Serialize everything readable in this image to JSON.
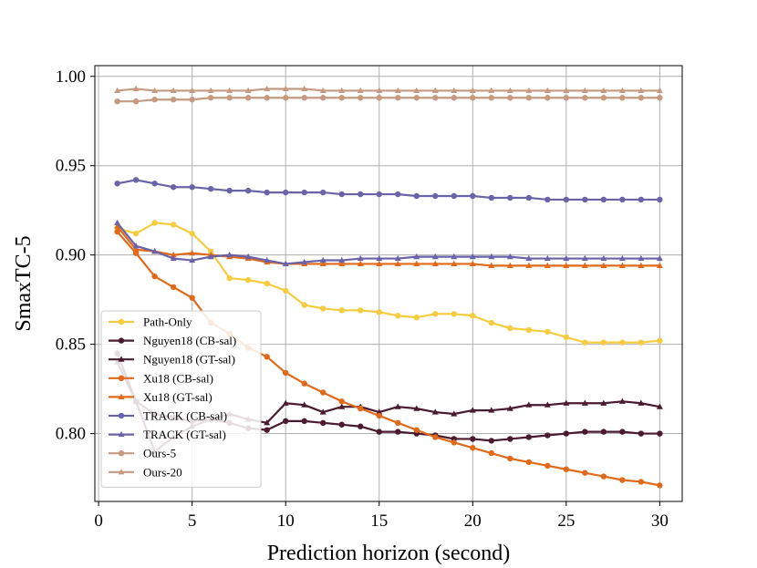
{
  "chart_data": {
    "type": "line",
    "title": "",
    "xlabel": "Prediction horizon (second)",
    "ylabel": "SmaxTC-5",
    "xlim": [
      -0.2,
      31.2
    ],
    "ylim": [
      0.762,
      1.006
    ],
    "xticks": [
      0,
      5,
      10,
      15,
      20,
      25,
      30
    ],
    "yticks": [
      0.8,
      0.85,
      0.9,
      0.95,
      1.0
    ],
    "xtick_labels": [
      "0",
      "5",
      "10",
      "15",
      "20",
      "25",
      "30"
    ],
    "ytick_labels": [
      "0.80",
      "0.85",
      "0.90",
      "0.95",
      "1.00"
    ],
    "grid": true,
    "legend_position": "lower-left",
    "series": [
      {
        "name": "Path-Only",
        "color": "#f5cc40",
        "marker": "circle",
        "x": [
          1,
          2,
          3,
          4,
          5,
          6,
          7,
          8,
          9,
          10,
          11,
          12,
          13,
          14,
          15,
          16,
          17,
          18,
          19,
          20,
          21,
          22,
          23,
          24,
          25,
          26,
          27,
          28,
          29,
          30
        ],
        "values": [
          0.915,
          0.912,
          0.918,
          0.917,
          0.912,
          0.902,
          0.887,
          0.886,
          0.884,
          0.88,
          0.872,
          0.87,
          0.869,
          0.869,
          0.868,
          0.866,
          0.865,
          0.867,
          0.867,
          0.866,
          0.862,
          0.859,
          0.858,
          0.857,
          0.854,
          0.851,
          0.851,
          0.851,
          0.851,
          0.852
        ]
      },
      {
        "name": "Nguyen18 (CB-sal)",
        "color": "#4a1a2e",
        "marker": "circle",
        "x": [
          1,
          2,
          3,
          4,
          5,
          6,
          7,
          8,
          9,
          10,
          11,
          12,
          13,
          14,
          15,
          16,
          17,
          18,
          19,
          20,
          21,
          22,
          23,
          24,
          25,
          26,
          27,
          28,
          29,
          30
        ],
        "values": [
          0.845,
          0.818,
          0.811,
          0.809,
          0.807,
          0.808,
          0.806,
          0.803,
          0.802,
          0.807,
          0.807,
          0.806,
          0.805,
          0.804,
          0.801,
          0.801,
          0.8,
          0.799,
          0.797,
          0.797,
          0.796,
          0.797,
          0.798,
          0.799,
          0.8,
          0.801,
          0.801,
          0.801,
          0.8,
          0.8
        ]
      },
      {
        "name": "Nguyen18 (GT-sal)",
        "color": "#4a1a2e",
        "marker": "triangle",
        "x": [
          1,
          2,
          3,
          4,
          5,
          6,
          7,
          8,
          9,
          10,
          11,
          12,
          13,
          14,
          15,
          16,
          17,
          18,
          19,
          20,
          21,
          22,
          23,
          24,
          25,
          26,
          27,
          28,
          29,
          30
        ],
        "values": [
          0.84,
          0.818,
          0.79,
          0.798,
          0.804,
          0.808,
          0.811,
          0.808,
          0.806,
          0.817,
          0.816,
          0.812,
          0.815,
          0.815,
          0.812,
          0.815,
          0.814,
          0.812,
          0.811,
          0.813,
          0.813,
          0.814,
          0.816,
          0.816,
          0.817,
          0.817,
          0.817,
          0.818,
          0.817,
          0.815
        ]
      },
      {
        "name": "Xu18 (CB-sal)",
        "color": "#e06a1a",
        "marker": "circle",
        "x": [
          1,
          2,
          3,
          4,
          5,
          6,
          7,
          8,
          9,
          10,
          11,
          12,
          13,
          14,
          15,
          16,
          17,
          18,
          19,
          20,
          21,
          22,
          23,
          24,
          25,
          26,
          27,
          28,
          29,
          30
        ],
        "values": [
          0.913,
          0.901,
          0.888,
          0.882,
          0.876,
          0.862,
          0.856,
          0.848,
          0.843,
          0.834,
          0.828,
          0.823,
          0.818,
          0.814,
          0.81,
          0.806,
          0.802,
          0.798,
          0.795,
          0.792,
          0.789,
          0.786,
          0.784,
          0.782,
          0.78,
          0.778,
          0.776,
          0.774,
          0.773,
          0.771
        ]
      },
      {
        "name": "Xu18 (GT-sal)",
        "color": "#e06a1a",
        "marker": "triangle",
        "x": [
          1,
          2,
          3,
          4,
          5,
          6,
          7,
          8,
          9,
          10,
          11,
          12,
          13,
          14,
          15,
          16,
          17,
          18,
          19,
          20,
          21,
          22,
          23,
          24,
          25,
          26,
          27,
          28,
          29,
          30
        ],
        "values": [
          0.916,
          0.903,
          0.902,
          0.9,
          0.901,
          0.9,
          0.899,
          0.898,
          0.896,
          0.895,
          0.895,
          0.895,
          0.895,
          0.895,
          0.895,
          0.895,
          0.895,
          0.895,
          0.895,
          0.895,
          0.894,
          0.894,
          0.894,
          0.894,
          0.894,
          0.894,
          0.894,
          0.894,
          0.894,
          0.894
        ]
      },
      {
        "name": "TRACK (CB-sal)",
        "color": "#6b63a8",
        "marker": "circle",
        "x": [
          1,
          2,
          3,
          4,
          5,
          6,
          7,
          8,
          9,
          10,
          11,
          12,
          13,
          14,
          15,
          16,
          17,
          18,
          19,
          20,
          21,
          22,
          23,
          24,
          25,
          26,
          27,
          28,
          29,
          30
        ],
        "values": [
          0.94,
          0.942,
          0.94,
          0.938,
          0.938,
          0.937,
          0.936,
          0.936,
          0.935,
          0.935,
          0.935,
          0.935,
          0.934,
          0.934,
          0.934,
          0.934,
          0.933,
          0.933,
          0.933,
          0.933,
          0.932,
          0.932,
          0.932,
          0.931,
          0.931,
          0.931,
          0.931,
          0.931,
          0.931,
          0.931
        ]
      },
      {
        "name": "TRACK (GT-sal)",
        "color": "#6b63a8",
        "marker": "triangle",
        "x": [
          1,
          2,
          3,
          4,
          5,
          6,
          7,
          8,
          9,
          10,
          11,
          12,
          13,
          14,
          15,
          16,
          17,
          18,
          19,
          20,
          21,
          22,
          23,
          24,
          25,
          26,
          27,
          28,
          29,
          30
        ],
        "values": [
          0.918,
          0.905,
          0.902,
          0.898,
          0.897,
          0.899,
          0.9,
          0.899,
          0.897,
          0.895,
          0.896,
          0.897,
          0.897,
          0.898,
          0.898,
          0.898,
          0.899,
          0.899,
          0.899,
          0.899,
          0.899,
          0.899,
          0.898,
          0.898,
          0.898,
          0.898,
          0.898,
          0.898,
          0.898,
          0.898
        ]
      },
      {
        "name": "Ours-5",
        "color": "#c49a80",
        "marker": "circle",
        "x": [
          1,
          2,
          3,
          4,
          5,
          6,
          7,
          8,
          9,
          10,
          11,
          12,
          13,
          14,
          15,
          16,
          17,
          18,
          19,
          20,
          21,
          22,
          23,
          24,
          25,
          26,
          27,
          28,
          29,
          30
        ],
        "values": [
          0.986,
          0.986,
          0.987,
          0.987,
          0.987,
          0.988,
          0.988,
          0.988,
          0.988,
          0.988,
          0.988,
          0.988,
          0.988,
          0.988,
          0.988,
          0.988,
          0.988,
          0.988,
          0.988,
          0.988,
          0.988,
          0.988,
          0.988,
          0.988,
          0.988,
          0.988,
          0.988,
          0.988,
          0.988,
          0.988
        ]
      },
      {
        "name": "Ours-20",
        "color": "#c49a80",
        "marker": "triangle",
        "x": [
          1,
          2,
          3,
          4,
          5,
          6,
          7,
          8,
          9,
          10,
          11,
          12,
          13,
          14,
          15,
          16,
          17,
          18,
          19,
          20,
          21,
          22,
          23,
          24,
          25,
          26,
          27,
          28,
          29,
          30
        ],
        "values": [
          0.992,
          0.993,
          0.992,
          0.992,
          0.992,
          0.992,
          0.992,
          0.992,
          0.993,
          0.993,
          0.993,
          0.992,
          0.992,
          0.992,
          0.992,
          0.992,
          0.992,
          0.992,
          0.992,
          0.992,
          0.992,
          0.992,
          0.992,
          0.992,
          0.992,
          0.992,
          0.992,
          0.992,
          0.992,
          0.992
        ]
      }
    ]
  }
}
